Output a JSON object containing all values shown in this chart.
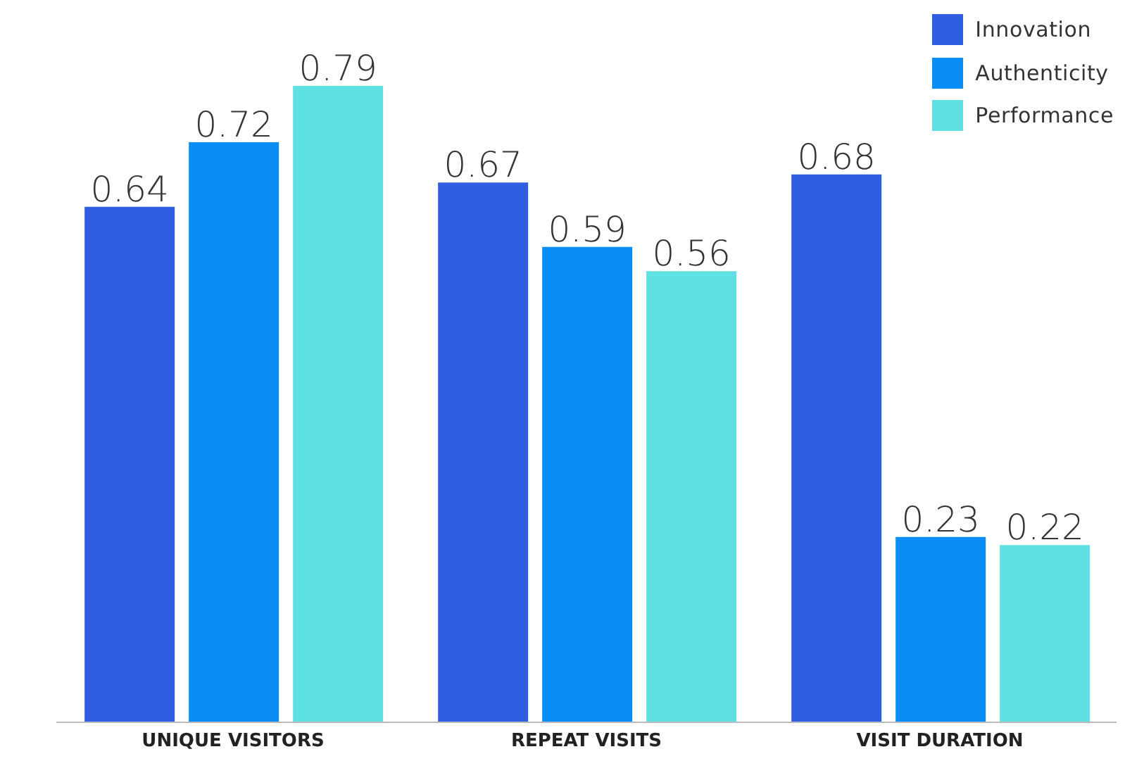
{
  "chart_data": {
    "type": "bar",
    "categories": [
      "UNIQUE VISITORS",
      "REPEAT VISITS",
      "VISIT DURATION"
    ],
    "series": [
      {
        "name": "Innovation",
        "color": "#2f5fe0",
        "values": [
          0.64,
          0.67,
          0.68
        ]
      },
      {
        "name": "Authenticity",
        "color": "#0a8ef5",
        "values": [
          0.72,
          0.59,
          0.23
        ]
      },
      {
        "name": "Performance",
        "color": "#5fe0e3",
        "values": [
          0.79,
          0.56,
          0.22
        ]
      }
    ],
    "data_labels": true,
    "legend": "top right"
  }
}
